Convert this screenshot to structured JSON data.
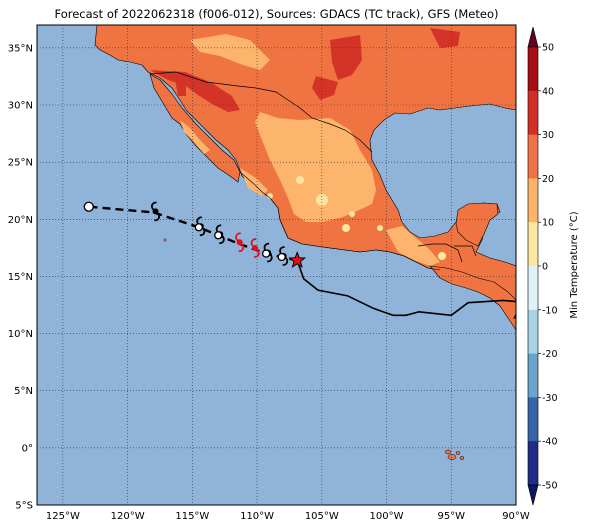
{
  "title": "Forecast of 2022062318 (f006-012), Sources: GDACS (TC track), GFS (Meteo)",
  "map": {
    "lon_range": [
      -127,
      -90
    ],
    "lat_range": [
      -5,
      37
    ],
    "lon_ticks": [
      {
        "value": -125,
        "label": "125°W"
      },
      {
        "value": -120,
        "label": "120°W"
      },
      {
        "value": -115,
        "label": "115°W"
      },
      {
        "value": -110,
        "label": "110°W"
      },
      {
        "value": -105,
        "label": "105°W"
      },
      {
        "value": -100,
        "label": "100°W"
      },
      {
        "value": -95,
        "label": "95°W"
      },
      {
        "value": -90,
        "label": "90°W"
      }
    ],
    "lat_ticks": [
      {
        "value": 35,
        "label": "35°N"
      },
      {
        "value": 30,
        "label": "30°N"
      },
      {
        "value": 25,
        "label": "25°N"
      },
      {
        "value": 20,
        "label": "20°N"
      },
      {
        "value": 15,
        "label": "15°N"
      },
      {
        "value": 10,
        "label": "10°N"
      },
      {
        "value": 5,
        "label": "5°N"
      },
      {
        "value": 0,
        "label": "0°"
      },
      {
        "value": -5,
        "label": "5°S"
      }
    ],
    "ocean_color": "#8fb3d9"
  },
  "track": {
    "past": [
      [
        -106.9,
        16.4
      ],
      [
        -106.4,
        14.8
      ],
      [
        -105.3,
        13.8
      ],
      [
        -103.0,
        13.3
      ],
      [
        -101.0,
        12.2
      ],
      [
        -99.5,
        11.6
      ],
      [
        -98.5,
        11.6
      ],
      [
        -97.5,
        11.9
      ],
      [
        -95.0,
        11.6
      ],
      [
        -93.7,
        12.7
      ],
      [
        -91.0,
        12.9
      ],
      [
        -90.0,
        12.8
      ],
      [
        -89.8,
        12.1
      ],
      [
        -90.1,
        11.4
      ],
      [
        -89.6,
        11.6
      ],
      [
        -89.9,
        11.0
      ]
    ],
    "forecast": [
      [
        -106.9,
        16.4
      ],
      [
        -108.1,
        16.7
      ],
      [
        -109.3,
        17.0
      ],
      [
        -110.3,
        17.4
      ],
      [
        -111.5,
        17.9
      ],
      [
        -113.0,
        18.6
      ],
      [
        -114.5,
        19.3
      ],
      [
        -118.0,
        20.6
      ],
      [
        -121.0,
        20.9
      ],
      [
        -123.0,
        21.1
      ]
    ],
    "current_position": [
      -106.9,
      16.4
    ],
    "end_position": [
      -123.0,
      21.1
    ],
    "symbols": [
      {
        "lon": -108.1,
        "lat": 16.7,
        "color": "#000000"
      },
      {
        "lon": -109.3,
        "lat": 17.0,
        "color": "#000000"
      },
      {
        "lon": -110.3,
        "lat": 17.4,
        "color": "#e0101a"
      },
      {
        "lon": -111.5,
        "lat": 17.9,
        "color": "#e0101a"
      },
      {
        "lon": -113.0,
        "lat": 18.6,
        "color": "#000000"
      },
      {
        "lon": -114.5,
        "lat": 19.3,
        "color": "#000000"
      },
      {
        "lon": -118.0,
        "lat": 20.6,
        "color": "#000000"
      }
    ],
    "open_circles": [
      {
        "lon": -108.1,
        "lat": 16.7
      },
      {
        "lon": -109.3,
        "lat": 17.0
      },
      {
        "lon": -113.0,
        "lat": 18.6
      },
      {
        "lon": -114.5,
        "lat": 19.3
      }
    ],
    "star_color": "#e0101a"
  },
  "colorbar": {
    "label": "Min Temperature (°C)",
    "ticks": [
      50,
      40,
      30,
      20,
      10,
      0,
      -10,
      -20,
      -30,
      -40,
      -50
    ],
    "colors_top_to_bottom": [
      "#67001f",
      "#a50f15",
      "#d52d28",
      "#f07248",
      "#fdb36b",
      "#fde6a0",
      "#e0f2f8",
      "#a9d3e7",
      "#6aa4cc",
      "#3565a8",
      "#1f2c8a",
      "#0f1664"
    ]
  }
}
